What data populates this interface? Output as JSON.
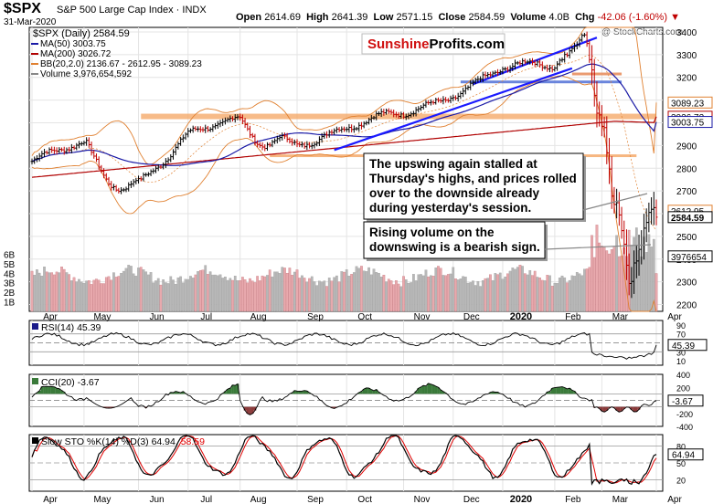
{
  "header": {
    "symbol": "$SPX",
    "name": "S&P 500 Large Cap Index",
    "exchange": "INDX",
    "date": "31-Mar-2020",
    "open_label": "Open",
    "open": "2614.69",
    "high_label": "High",
    "high": "2641.39",
    "low_label": "Low",
    "low": "2571.15",
    "close_label": "Close",
    "close": "2584.59",
    "volume_label": "Volume",
    "volume": "4.0B",
    "chg_label": "Chg",
    "chg": "-42.06 (-1.60%)",
    "chg_arrow": "▼",
    "watermark": "@ StockCharts.com"
  },
  "legend": {
    "price": "$SPX (Daily) 2584.59",
    "ma50": "MA(50) 3003.75",
    "ma200": "MA(200) 3026.72",
    "bb": "BB(20,2.0) 2136.67 - 2612.95 - 3089.23",
    "volume": "Volume 3,976,654,592"
  },
  "logo": {
    "part1": "Sunshine",
    "part2": "Profits",
    "part3": ".com"
  },
  "annotations": {
    "a1": [
      "The upswing again stalled at",
      "Thursday's highs, and prices rolled",
      "over to the downside already",
      "during yesterday's session."
    ],
    "a2": [
      "Rising volume on the",
      "downswing is a bearish sign."
    ]
  },
  "price_panel": {
    "ticks": [
      "3400",
      "3300",
      "3200",
      "3100",
      "3000",
      "2900",
      "2800",
      "2700",
      "2600",
      "2500",
      "2400",
      "2300",
      "2200"
    ],
    "tick_values": [
      3400,
      3300,
      3200,
      3100,
      3000,
      2900,
      2800,
      2700,
      2600,
      2500,
      2400,
      2300,
      2200
    ],
    "ylim": [
      2170,
      3420
    ],
    "value_boxes": [
      {
        "label": "3089.23",
        "value": 3089.23,
        "color": "#e08030"
      },
      {
        "label": "3026.72",
        "value": 3026.72,
        "color": "#b00000"
      },
      {
        "label": "3003.75",
        "value": 3003.75,
        "color": "#1a1aa6"
      },
      {
        "label": "2612.95",
        "value": 2612.95,
        "color": "#e08030"
      },
      {
        "label": "2584.59",
        "value": 2584.59,
        "color": "#000000"
      },
      {
        "label": "3976654",
        "value": 2412,
        "color": "#000000"
      }
    ],
    "volume_ticks": [
      "6B",
      "5B",
      "4B",
      "3B",
      "2B",
      "1B"
    ],
    "volume_tick_values": [
      6,
      5,
      4,
      3,
      2,
      1
    ],
    "volume_max": 9.2
  },
  "x_axis": {
    "months": [
      "Apr",
      "May",
      "Jun",
      "Jul",
      "Aug",
      "Sep",
      "Oct",
      "Nov",
      "Dec",
      "2020",
      "Feb",
      "Mar",
      "Apr"
    ],
    "month_index": [
      0,
      21,
      43,
      63,
      84,
      107,
      127,
      150,
      170,
      190,
      211,
      230,
      252
    ],
    "bold_index": 9
  },
  "rsi": {
    "legend": "RSI(14) 45.39",
    "ticks": [
      "90",
      "70",
      "50",
      "30",
      "10"
    ],
    "tick_values": [
      90,
      70,
      50,
      30,
      10
    ],
    "last_label": "45.39"
  },
  "cci": {
    "legend": "CCI(20) -3.67",
    "ticks": [
      "400",
      "200",
      "0",
      "-200",
      "-400"
    ],
    "tick_values": [
      400,
      200,
      0,
      -200,
      -400
    ],
    "last_label": "-3.67"
  },
  "sto": {
    "legend_k": "Slow STO %K(14) %D(3) 64.94,",
    "legend_d": "58.59",
    "ticks": [
      "80",
      "50",
      "20"
    ],
    "tick_values": [
      80,
      50,
      20
    ],
    "last_label": "64.94"
  },
  "colors": {
    "ma50": "#1a1aa6",
    "ma200": "#b00000",
    "bb": "#e08030",
    "support": "#f4a460",
    "resistance_blue": "#1a1aa6",
    "volume_down": "#e8a9ad",
    "volume_up": "#b8b8b8",
    "cci_pos": "#3a7a3a",
    "cci_neg": "#8b3a3a",
    "sto_d": "#e00000"
  },
  "chart_data": {
    "type": "line",
    "title": "$SPX S&P 500 Large Cap Index",
    "series": [
      {
        "name": "$SPX (Daily)",
        "last": 2584.59
      },
      {
        "name": "MA(50)",
        "last": 3003.75
      },
      {
        "name": "MA(200)",
        "last": 3026.72
      },
      {
        "name": "BB(20,2.0)",
        "lower": 2136.67,
        "middle": 2612.95,
        "upper": 3089.23
      }
    ],
    "x": [
      "Apr",
      "May",
      "Jun",
      "Jul",
      "Aug",
      "Sep",
      "Oct",
      "Nov",
      "Dec",
      "2020",
      "Feb",
      "Mar",
      "Apr"
    ],
    "close_by_month": [
      2830,
      2895,
      2755,
      2945,
      3000,
      2925,
      2965,
      3040,
      3140,
      3230,
      3245,
      3105,
      2584.59
    ],
    "ylim": [
      2170,
      3420
    ],
    "volume_last": 3976654592,
    "rsi_last": 45.39,
    "cci_last": -3.67,
    "sto_k_last": 64.94,
    "sto_d_last": 58.59
  }
}
